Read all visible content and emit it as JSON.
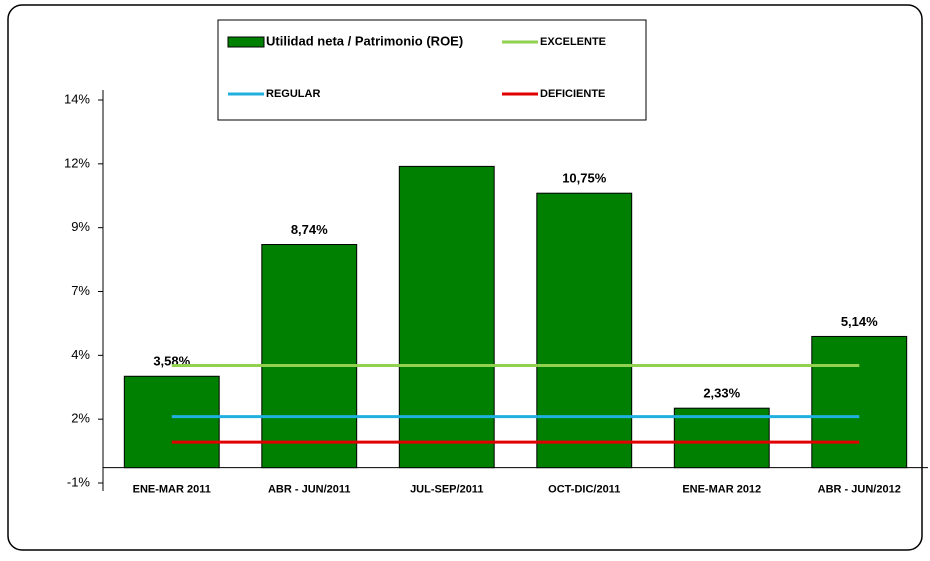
{
  "chart_data": {
    "type": "bar",
    "categories": [
      "ENE-MAR 2011",
      "ABR - JUN/2011",
      "JUL-SEP/2011",
      "OCT-DIC/2011",
      "ENE-MAR 2012",
      "ABR - JUN/2012"
    ],
    "series": [
      {
        "name": "Utilidad neta / Patrimonio (ROE)",
        "type": "bar",
        "color": "#008000",
        "values": [
          3.58,
          8.74,
          11.8,
          10.75,
          2.33,
          5.14
        ],
        "value_labels": [
          "3,58%",
          "8,74%",
          null,
          "10,75%",
          "2,33%",
          "5,14%"
        ]
      },
      {
        "name": "EXCELENTE",
        "type": "line",
        "color": "#92d050",
        "values": [
          4,
          4,
          4,
          4,
          4,
          4
        ]
      },
      {
        "name": "REGULAR",
        "type": "line",
        "color": "#1fb0e0",
        "values": [
          2,
          2,
          2,
          2,
          2,
          2
        ]
      },
      {
        "name": "DEFICIENTE",
        "type": "line",
        "color": "#e00000",
        "values": [
          1,
          1,
          1,
          1,
          1,
          1
        ]
      }
    ],
    "ylim": [
      -0.6,
      14.4
    ],
    "yticks": [
      {
        "value": -0.6,
        "label": "-1%"
      },
      {
        "value": 1.9,
        "label": "2%"
      },
      {
        "value": 4.4,
        "label": "4%"
      },
      {
        "value": 6.9,
        "label": "7%"
      },
      {
        "value": 9.4,
        "label": "9%"
      },
      {
        "value": 11.9,
        "label": "12%"
      },
      {
        "value": 14.4,
        "label": "14%"
      }
    ],
    "grid": false
  }
}
